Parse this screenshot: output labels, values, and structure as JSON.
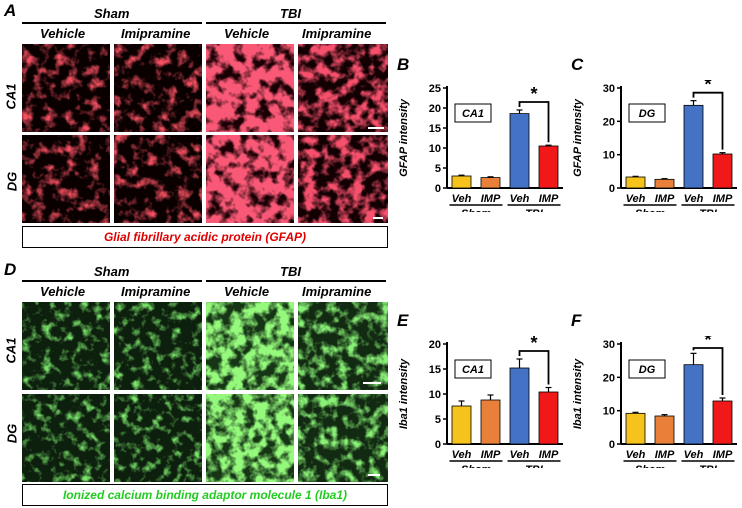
{
  "panel_letters": {
    "A": "A",
    "B": "B",
    "C": "C",
    "D": "D",
    "E": "E",
    "F": "F"
  },
  "micrographs": {
    "group_labels": [
      "Sham",
      "TBI"
    ],
    "column_labels": [
      "Vehicle",
      "Imipramine",
      "Vehicle",
      "Imipramine"
    ],
    "row_labels": [
      "CA1",
      "DG"
    ],
    "gfap_caption": "Glial fibrillary acidic protein (GFAP)",
    "iba1_caption": "Ionized calcium binding adaptor molecule 1 (Iba1)",
    "colors": {
      "gfap": "#e0202a",
      "iba1": "#2fd12f",
      "caption_gfap": "#e00000",
      "caption_iba1": "#22cc22"
    }
  },
  "chart_data": [
    {
      "panel": "B",
      "type": "bar",
      "region": "CA1",
      "ylabel": "GFAP intensity",
      "ylim": [
        0,
        25
      ],
      "yticks": [
        0,
        5,
        10,
        15,
        20,
        25
      ],
      "categories": [
        "Veh",
        "IMP",
        "Veh",
        "IMP"
      ],
      "groups": [
        "Sham",
        "TBI"
      ],
      "values": [
        3.0,
        2.6,
        18.6,
        10.5
      ],
      "errors": [
        0.2,
        0.2,
        0.9,
        0.2
      ],
      "colors": [
        "#f6c21c",
        "#e8803a",
        "#4472c4",
        "#f01818"
      ],
      "significance": "*"
    },
    {
      "panel": "C",
      "type": "bar",
      "region": "DG",
      "ylabel": "GFAP intensity",
      "ylim": [
        0,
        30
      ],
      "yticks": [
        0,
        10,
        20,
        30
      ],
      "categories": [
        "Veh",
        "IMP",
        "Veh",
        "IMP"
      ],
      "groups": [
        "Sham",
        "TBI"
      ],
      "values": [
        3.3,
        2.6,
        24.8,
        10.2
      ],
      "errors": [
        0.2,
        0.2,
        1.4,
        0.4
      ],
      "colors": [
        "#f6c21c",
        "#e8803a",
        "#4472c4",
        "#f01818"
      ],
      "significance": "*"
    },
    {
      "panel": "E",
      "type": "bar",
      "region": "CA1",
      "ylabel": "Iba1 intensity",
      "ylim": [
        0,
        20
      ],
      "yticks": [
        0,
        5,
        10,
        15,
        20
      ],
      "categories": [
        "Veh",
        "IMP",
        "Veh",
        "IMP"
      ],
      "groups": [
        "Sham",
        "TBI"
      ],
      "values": [
        7.6,
        8.8,
        15.2,
        10.4
      ],
      "errors": [
        1.0,
        1.0,
        1.8,
        0.9
      ],
      "colors": [
        "#f6c21c",
        "#e8803a",
        "#4472c4",
        "#f01818"
      ],
      "significance": "*"
    },
    {
      "panel": "F",
      "type": "bar",
      "region": "DG",
      "ylabel": "Iba1 intensity",
      "ylim": [
        0,
        30
      ],
      "yticks": [
        0,
        10,
        20,
        30
      ],
      "categories": [
        "Veh",
        "IMP",
        "Veh",
        "IMP"
      ],
      "groups": [
        "Sham",
        "TBI"
      ],
      "values": [
        9.2,
        8.4,
        23.8,
        12.9
      ],
      "errors": [
        0.3,
        0.4,
        3.4,
        0.9
      ],
      "colors": [
        "#f6c21c",
        "#e8803a",
        "#4472c4",
        "#f01818"
      ],
      "significance": "*"
    }
  ]
}
